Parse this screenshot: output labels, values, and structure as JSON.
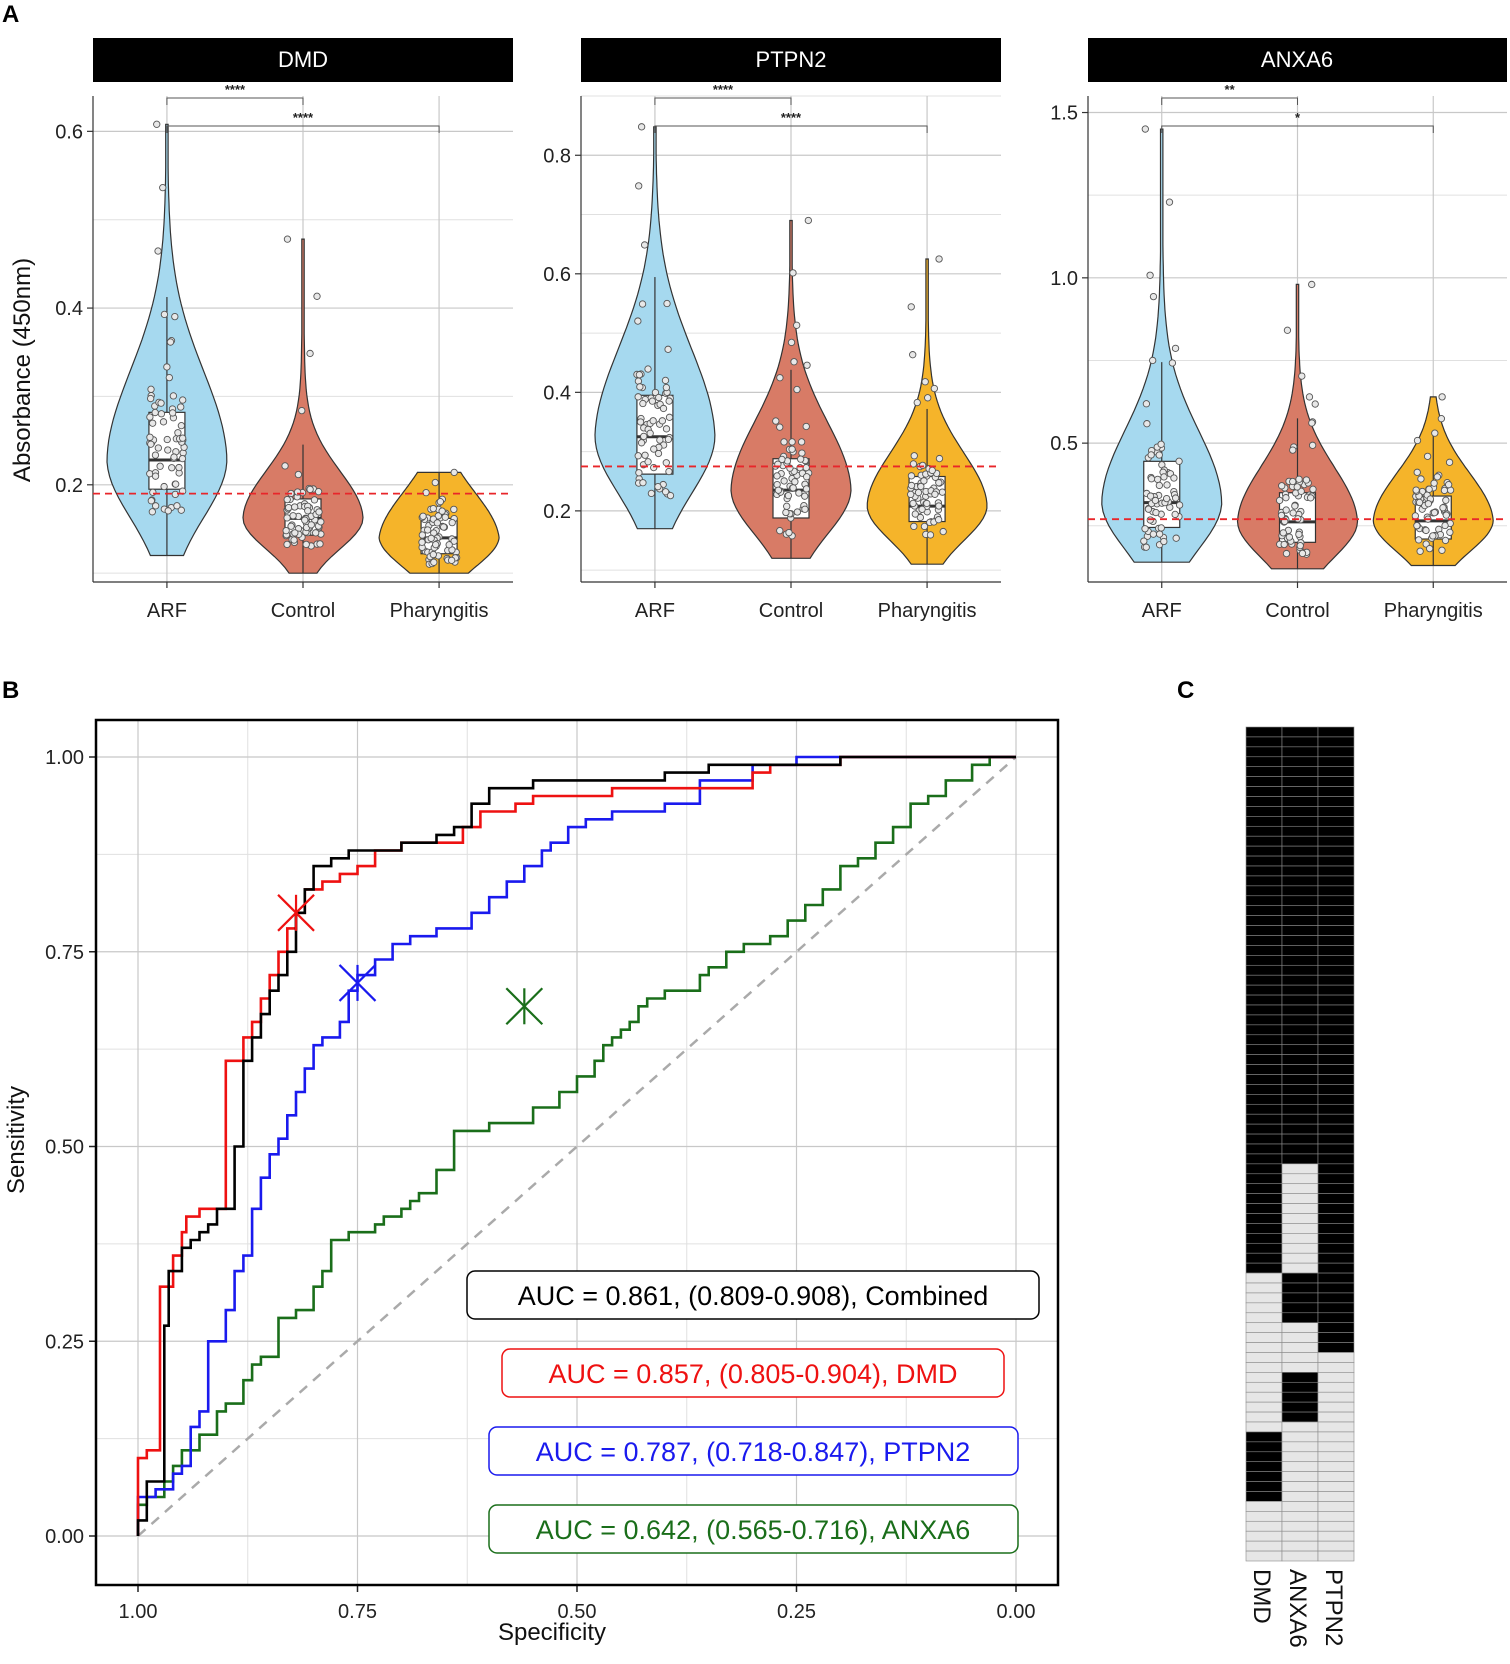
{
  "panels": {
    "A": "A",
    "B": "B",
    "C": "C"
  },
  "chart_data": [
    {
      "type": "violin",
      "facets": [
        {
          "title": "DMD",
          "ylabel": "Absorbance (450nm)",
          "categories": [
            "ARF",
            "Control",
            "Pharyngitis"
          ],
          "ylim": [
            0.09,
            0.64
          ],
          "yticks": [
            0.2,
            0.4,
            0.6
          ],
          "tick_labels": [
            "0.2",
            "0.4",
            "0.6"
          ],
          "cutoff": 0.19,
          "groups": [
            {
              "name": "ARF",
              "min": 0.12,
              "q1": 0.195,
              "median": 0.228,
              "q3": 0.282,
              "max": 0.608,
              "color": "#a6d9ef"
            },
            {
              "name": "Control",
              "min": 0.1,
              "q1": 0.143,
              "median": 0.162,
              "q3": 0.184,
              "max": 0.478,
              "color": "#d87b66"
            },
            {
              "name": "Pharyngitis",
              "min": 0.1,
              "q1": 0.122,
              "median": 0.14,
              "q3": 0.162,
              "max": 0.214,
              "color": "#f5b42a"
            }
          ],
          "comparisons": [
            {
              "pair": [
                "ARF",
                "Control"
              ],
              "label": "****"
            },
            {
              "pair": [
                "ARF",
                "Pharyngitis"
              ],
              "label": "****"
            }
          ]
        },
        {
          "title": "PTPN2",
          "ylabel": "",
          "categories": [
            "ARF",
            "Control",
            "Pharyngitis"
          ],
          "ylim": [
            0.08,
            0.9
          ],
          "yticks": [
            0.2,
            0.4,
            0.6,
            0.8
          ],
          "tick_labels": [
            "0.2",
            "0.4",
            "0.6",
            "0.8"
          ],
          "cutoff": 0.275,
          "groups": [
            {
              "name": "ARF",
              "min": 0.17,
              "q1": 0.262,
              "median": 0.325,
              "q3": 0.395,
              "max": 0.848,
              "color": "#a6d9ef"
            },
            {
              "name": "Control",
              "min": 0.12,
              "q1": 0.188,
              "median": 0.235,
              "q3": 0.288,
              "max": 0.69,
              "color": "#d87b66"
            },
            {
              "name": "Pharyngitis",
              "min": 0.11,
              "q1": 0.182,
              "median": 0.208,
              "q3": 0.258,
              "max": 0.625,
              "color": "#f5b42a"
            }
          ],
          "comparisons": [
            {
              "pair": [
                "ARF",
                "Control"
              ],
              "label": "****"
            },
            {
              "pair": [
                "ARF",
                "Pharyngitis"
              ],
              "label": "****"
            }
          ]
        },
        {
          "title": "ANXA6",
          "ylabel": "",
          "categories": [
            "ARF",
            "Control",
            "Pharyngitis"
          ],
          "ylim": [
            0.08,
            1.55
          ],
          "yticks": [
            0.5,
            1.0,
            1.5
          ],
          "tick_labels": [
            "0.5",
            "1.0",
            "1.5"
          ],
          "cutoff": 0.27,
          "groups": [
            {
              "name": "ARF",
              "min": 0.14,
              "q1": 0.245,
              "median": 0.32,
              "q3": 0.445,
              "max": 1.45,
              "color": "#a6d9ef"
            },
            {
              "name": "Control",
              "min": 0.12,
              "q1": 0.2,
              "median": 0.262,
              "q3": 0.35,
              "max": 0.98,
              "color": "#d87b66"
            },
            {
              "name": "Pharyngitis",
              "min": 0.13,
              "q1": 0.21,
              "median": 0.265,
              "q3": 0.34,
              "max": 0.64,
              "color": "#f5b42a"
            }
          ],
          "comparisons": [
            {
              "pair": [
                "ARF",
                "Control"
              ],
              "label": "**"
            },
            {
              "pair": [
                "ARF",
                "Pharyngitis"
              ],
              "label": "*"
            }
          ]
        }
      ]
    },
    {
      "type": "line",
      "xlabel": "Specificity",
      "ylabel": "Sensitivity",
      "xlim": [
        1.0,
        0.0
      ],
      "ylim": [
        0.0,
        1.0
      ],
      "xticks": [
        1.0,
        0.75,
        0.5,
        0.25,
        0.0
      ],
      "x_tick_labels": [
        "1.00",
        "0.75",
        "0.50",
        "0.25",
        "0.00"
      ],
      "yticks": [
        0.0,
        0.25,
        0.5,
        0.75,
        1.0
      ],
      "y_tick_labels": [
        "0.00",
        "0.25",
        "0.50",
        "0.75",
        "1.00"
      ],
      "series": [
        {
          "name": "Combined",
          "color": "#000000",
          "auc_label": "AUC = 0.861, (0.809-0.908), Combined",
          "points": [
            [
              1.0,
              0.0
            ],
            [
              0.99,
              0.02
            ],
            [
              0.99,
              0.07
            ],
            [
              0.97,
              0.07
            ],
            [
              0.97,
              0.27
            ],
            [
              0.965,
              0.27
            ],
            [
              0.965,
              0.34
            ],
            [
              0.95,
              0.34
            ],
            [
              0.95,
              0.36
            ],
            [
              0.94,
              0.37
            ],
            [
              0.93,
              0.38
            ],
            [
              0.92,
              0.39
            ],
            [
              0.91,
              0.4
            ],
            [
              0.9,
              0.42
            ],
            [
              0.89,
              0.42
            ],
            [
              0.89,
              0.5
            ],
            [
              0.88,
              0.5
            ],
            [
              0.88,
              0.59
            ],
            [
              0.87,
              0.61
            ],
            [
              0.86,
              0.64
            ],
            [
              0.85,
              0.67
            ],
            [
              0.84,
              0.7
            ],
            [
              0.83,
              0.72
            ],
            [
              0.82,
              0.75
            ],
            [
              0.81,
              0.8
            ],
            [
              0.8,
              0.83
            ],
            [
              0.78,
              0.86
            ],
            [
              0.76,
              0.87
            ],
            [
              0.7,
              0.88
            ],
            [
              0.66,
              0.89
            ],
            [
              0.64,
              0.9
            ],
            [
              0.62,
              0.91
            ],
            [
              0.6,
              0.94
            ],
            [
              0.55,
              0.96
            ],
            [
              0.5,
              0.97
            ],
            [
              0.4,
              0.97
            ],
            [
              0.35,
              0.98
            ],
            [
              0.3,
              0.99
            ],
            [
              0.2,
              0.99
            ],
            [
              0.16,
              1.0
            ],
            [
              0.0,
              1.0
            ]
          ]
        },
        {
          "name": "DMD",
          "color": "#ee1111",
          "auc_label": "AUC = 0.857, (0.805-0.904), DMD",
          "points": [
            [
              1.0,
              0.0
            ],
            [
              0.99,
              0.1
            ],
            [
              0.98,
              0.11
            ],
            [
              0.975,
              0.11
            ],
            [
              0.975,
              0.27
            ],
            [
              0.96,
              0.32
            ],
            [
              0.95,
              0.36
            ],
            [
              0.945,
              0.39
            ],
            [
              0.93,
              0.41
            ],
            [
              0.91,
              0.42
            ],
            [
              0.9,
              0.42
            ],
            [
              0.9,
              0.6
            ],
            [
              0.88,
              0.61
            ],
            [
              0.87,
              0.64
            ],
            [
              0.86,
              0.66
            ],
            [
              0.85,
              0.69
            ],
            [
              0.84,
              0.72
            ],
            [
              0.83,
              0.75
            ],
            [
              0.82,
              0.78
            ],
            [
              0.81,
              0.8
            ],
            [
              0.79,
              0.83
            ],
            [
              0.77,
              0.84
            ],
            [
              0.75,
              0.85
            ],
            [
              0.73,
              0.86
            ],
            [
              0.7,
              0.88
            ],
            [
              0.63,
              0.89
            ],
            [
              0.61,
              0.91
            ],
            [
              0.57,
              0.93
            ],
            [
              0.55,
              0.94
            ],
            [
              0.5,
              0.95
            ],
            [
              0.46,
              0.95
            ],
            [
              0.44,
              0.96
            ],
            [
              0.3,
              0.96
            ],
            [
              0.28,
              0.98
            ],
            [
              0.2,
              0.99
            ],
            [
              0.16,
              1.0
            ],
            [
              0.0,
              1.0
            ]
          ]
        },
        {
          "name": "PTPN2",
          "color": "#1a1aee",
          "auc_label": "AUC = 0.787, (0.718-0.847), PTPN2",
          "points": [
            [
              1.0,
              0.0
            ],
            [
              0.98,
              0.05
            ],
            [
              0.97,
              0.06
            ],
            [
              0.96,
              0.06
            ],
            [
              0.95,
              0.08
            ],
            [
              0.94,
              0.09
            ],
            [
              0.93,
              0.14
            ],
            [
              0.92,
              0.16
            ],
            [
              0.92,
              0.22
            ],
            [
              0.9,
              0.25
            ],
            [
              0.89,
              0.29
            ],
            [
              0.88,
              0.34
            ],
            [
              0.87,
              0.36
            ],
            [
              0.86,
              0.42
            ],
            [
              0.85,
              0.46
            ],
            [
              0.84,
              0.49
            ],
            [
              0.83,
              0.51
            ],
            [
              0.82,
              0.54
            ],
            [
              0.81,
              0.57
            ],
            [
              0.8,
              0.6
            ],
            [
              0.79,
              0.63
            ],
            [
              0.77,
              0.64
            ],
            [
              0.76,
              0.66
            ],
            [
              0.75,
              0.7
            ],
            [
              0.73,
              0.72
            ],
            [
              0.71,
              0.74
            ],
            [
              0.69,
              0.76
            ],
            [
              0.66,
              0.77
            ],
            [
              0.62,
              0.78
            ],
            [
              0.6,
              0.8
            ],
            [
              0.58,
              0.82
            ],
            [
              0.56,
              0.84
            ],
            [
              0.54,
              0.86
            ],
            [
              0.53,
              0.88
            ],
            [
              0.51,
              0.89
            ],
            [
              0.49,
              0.91
            ],
            [
              0.46,
              0.92
            ],
            [
              0.4,
              0.93
            ],
            [
              0.36,
              0.94
            ],
            [
              0.3,
              0.97
            ],
            [
              0.25,
              0.99
            ],
            [
              0.2,
              1.0
            ],
            [
              0.0,
              1.0
            ]
          ]
        },
        {
          "name": "ANXA6",
          "color": "#1a6e1a",
          "auc_label": "AUC = 0.642, (0.565-0.716), ANXA6",
          "points": [
            [
              1.0,
              0.0
            ],
            [
              0.99,
              0.04
            ],
            [
              0.97,
              0.05
            ],
            [
              0.96,
              0.07
            ],
            [
              0.95,
              0.09
            ],
            [
              0.93,
              0.11
            ],
            [
              0.91,
              0.13
            ],
            [
              0.9,
              0.16
            ],
            [
              0.88,
              0.17
            ],
            [
              0.87,
              0.2
            ],
            [
              0.86,
              0.22
            ],
            [
              0.84,
              0.23
            ],
            [
              0.82,
              0.28
            ],
            [
              0.8,
              0.29
            ],
            [
              0.79,
              0.32
            ],
            [
              0.78,
              0.34
            ],
            [
              0.76,
              0.38
            ],
            [
              0.73,
              0.39
            ],
            [
              0.72,
              0.4
            ],
            [
              0.7,
              0.41
            ],
            [
              0.69,
              0.42
            ],
            [
              0.68,
              0.43
            ],
            [
              0.66,
              0.44
            ],
            [
              0.64,
              0.47
            ],
            [
              0.6,
              0.52
            ],
            [
              0.55,
              0.53
            ],
            [
              0.52,
              0.55
            ],
            [
              0.5,
              0.57
            ],
            [
              0.48,
              0.59
            ],
            [
              0.47,
              0.61
            ],
            [
              0.46,
              0.63
            ],
            [
              0.45,
              0.64
            ],
            [
              0.44,
              0.65
            ],
            [
              0.43,
              0.66
            ],
            [
              0.42,
              0.68
            ],
            [
              0.4,
              0.69
            ],
            [
              0.36,
              0.7
            ],
            [
              0.35,
              0.72
            ],
            [
              0.33,
              0.73
            ],
            [
              0.31,
              0.75
            ],
            [
              0.28,
              0.76
            ],
            [
              0.26,
              0.77
            ],
            [
              0.24,
              0.79
            ],
            [
              0.22,
              0.81
            ],
            [
              0.2,
              0.83
            ],
            [
              0.18,
              0.86
            ],
            [
              0.16,
              0.87
            ],
            [
              0.14,
              0.89
            ],
            [
              0.12,
              0.91
            ],
            [
              0.1,
              0.94
            ],
            [
              0.08,
              0.95
            ],
            [
              0.05,
              0.97
            ],
            [
              0.03,
              0.99
            ],
            [
              0.0,
              1.0
            ]
          ]
        }
      ],
      "best_points": [
        {
          "name": "DMD",
          "x": 0.82,
          "y": 0.8,
          "color": "#ee1111"
        },
        {
          "name": "PTPN2",
          "x": 0.75,
          "y": 0.71,
          "color": "#1a1aee"
        },
        {
          "name": "ANXA6",
          "x": 0.56,
          "y": 0.68,
          "color": "#1a6e1a"
        }
      ],
      "diagonal": true
    },
    {
      "type": "heatmap",
      "columns": [
        "DMD",
        "ANXA6",
        "PTPN2"
      ],
      "n_rows": 84,
      "column_positive_rows": [
        [
          [
            0,
            55
          ],
          [
            71,
            78
          ]
        ],
        [
          [
            0,
            44
          ],
          [
            55,
            60
          ],
          [
            65,
            70
          ]
        ],
        [
          [
            0,
            63
          ]
        ]
      ],
      "positive_color": "#000000",
      "negative_color": "#e6e6e6"
    }
  ]
}
